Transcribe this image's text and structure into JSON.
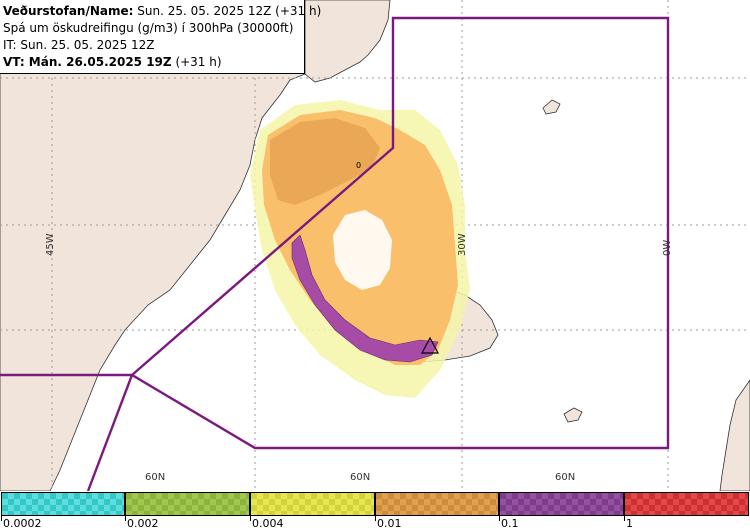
{
  "header": {
    "line1_label": "Veðurstofan/Name:",
    "line1_value": "Sun. 25. 05. 2025 12Z (+31 h)",
    "line2": "Spá um öskudreifingu (g/m3) í 300hPa (30000ft)",
    "line3": "IT: Sun. 25. 05. 2025 12Z",
    "line4_label": "VT: Mán. 26.05.2025 19Z",
    "line4_value": "(+31 h)"
  },
  "map": {
    "lon_labels": [
      "45W",
      "30W",
      "0W"
    ],
    "lat_labels": [
      "60N",
      "60N",
      "60N"
    ],
    "colors": {
      "ocean": "#ffffff",
      "land": "#f1e4da",
      "boundary": "#7a1a7e",
      "grid": "#9a9a9a"
    }
  },
  "legend": {
    "labels": [
      "0.0002",
      "0.002",
      "0.004",
      "0.01",
      "0.1",
      "1"
    ],
    "colors": [
      "#33c8c8",
      "#8cb43c",
      "#d2d23c",
      "#cd8c3c",
      "#7d3c8c",
      "#c83232"
    ],
    "colors_alt": [
      "#5fdcdc",
      "#a0c850",
      "#e6e650",
      "#e1a050",
      "#9650a0",
      "#e64646"
    ]
  }
}
